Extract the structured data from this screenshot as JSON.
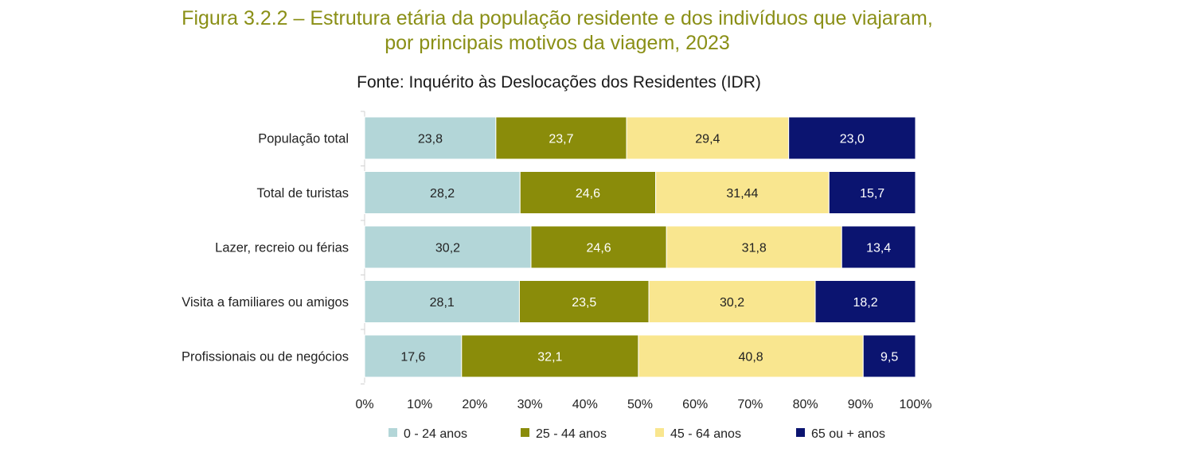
{
  "title_lines": [
    "Figura 3.2.2 – Estrutura etária da população residente e dos indivíduos que viajaram,",
    "por principais motivos da viagem, 2023"
  ],
  "subtitle": "Fonte: Inquérito às Deslocações dos Residentes (IDR)",
  "chart_data": {
    "type": "bar",
    "orientation": "horizontal",
    "stacked": "percent",
    "categories": [
      "População total",
      "Total de turistas",
      "Lazer, recreio ou férias",
      "Visita a familiares ou amigos",
      "Profissionais ou de negócios"
    ],
    "series": [
      {
        "name": "0 - 24 anos",
        "color": "#b3d6d8",
        "label_color": "#222222",
        "values": [
          23.8,
          28.2,
          30.2,
          28.1,
          17.6
        ],
        "labels": [
          "23,8",
          "28,2",
          "30,2",
          "28,1",
          "17,6"
        ]
      },
      {
        "name": "25 - 44 anos",
        "color": "#8a8c0a",
        "label_color": "#ffffff",
        "values": [
          23.7,
          24.6,
          24.6,
          23.5,
          32.1
        ],
        "labels": [
          "23,7",
          "24,6",
          "24,6",
          "23,5",
          "32,1"
        ]
      },
      {
        "name": "45 - 64 anos",
        "color": "#f9e68f",
        "label_color": "#222222",
        "values": [
          29.4,
          31.44,
          31.8,
          30.2,
          40.8
        ],
        "labels": [
          "29,4",
          "31,44",
          "31,8",
          "30,2",
          "40,8"
        ]
      },
      {
        "name": "65 ou + anos",
        "color": "#0b1470",
        "label_color": "#ffffff",
        "values": [
          23.0,
          15.7,
          13.4,
          18.2,
          9.5
        ],
        "labels": [
          "23,0",
          "15,7",
          "13,4",
          "18,2",
          "9,5"
        ]
      }
    ],
    "xlim": [
      0,
      100
    ],
    "xticks": [
      "0%",
      "10%",
      "20%",
      "30%",
      "40%",
      "50%",
      "60%",
      "70%",
      "80%",
      "90%",
      "100%"
    ],
    "legend_position": "bottom",
    "grid": false
  }
}
